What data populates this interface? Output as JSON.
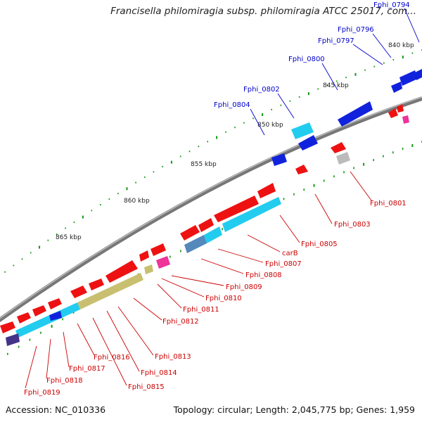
{
  "title": "Francisella philomiragia subsp. philomiragia ATCC 25017, com...",
  "footer": {
    "accession": "Accession: NC_010336",
    "info": "Topology: circular; Length: 2,045,775 bp; Genes: 1,959"
  },
  "scale_labels": [
    "840 kbp",
    "845 kbp",
    "850 kbp",
    "855 kbp",
    "860 kbp",
    "865 kbp"
  ],
  "gene_labels_blue": [
    "Fphi_0794",
    "Fphi_0796",
    "Fphi_0797",
    "Fphi_0800",
    "Fphi_0802",
    "Fphi_0804"
  ],
  "gene_labels_red": [
    "Fphi_0801",
    "Fphi_0803",
    "Fphi_0805",
    "carB",
    "Fphi_0807",
    "Fphi_0808",
    "Fphi_0809",
    "Fphi_0810",
    "Fphi_0811",
    "Fphi_0812",
    "Fphi_0813",
    "Fphi_0814",
    "Fphi_0815",
    "Fphi_0816",
    "Fphi_0817",
    "Fphi_0818",
    "Fphi_0819"
  ],
  "colors": {
    "forward_gene": "#ee1111",
    "reverse_gene": "#1122dd",
    "rna_gene": "#22ccee",
    "backbone": "#888888",
    "tick": "#119911",
    "label_red": "#cc0000",
    "label_blue": "#0000cc"
  }
}
